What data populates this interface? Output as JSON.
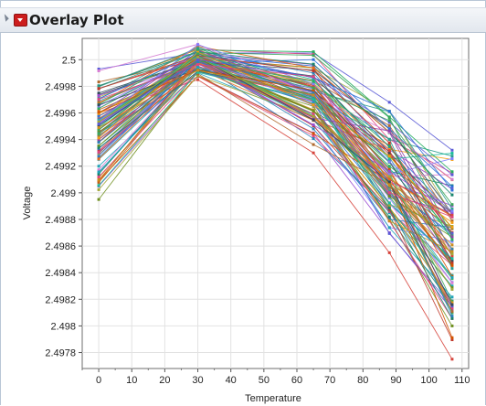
{
  "title": "Overlay Plot",
  "chart_data": {
    "type": "line",
    "xlabel": "Temperature",
    "ylabel": "Voltage",
    "xlim": [
      -5,
      112
    ],
    "ylim": [
      2.49768,
      2.50016
    ],
    "x_ticks": [
      0,
      10,
      20,
      30,
      40,
      50,
      60,
      70,
      80,
      90,
      100,
      110
    ],
    "y_ticks": [
      "2.4978",
      "2.498",
      "2.4982",
      "2.4984",
      "2.4986",
      "2.4988",
      "2.499",
      "2.4992",
      "2.4994",
      "2.4996",
      "2.4998",
      "2.5"
    ],
    "grid": true,
    "x": [
      0,
      30,
      65,
      88,
      107
    ],
    "series_count": 100,
    "series_values_range": {
      "x0": [
        2.49895,
        2.49993
      ],
      "x30": [
        2.49985,
        2.50012
      ],
      "x65": [
        2.4993,
        2.50006
      ],
      "x88": [
        2.49855,
        2.49968
      ],
      "x107": [
        2.49775,
        2.49932
      ]
    },
    "example_series": [
      {
        "values": [
          2.49993,
          2.50005,
          2.50005,
          2.49968,
          2.49932
        ]
      },
      {
        "values": [
          2.4998,
          2.50008,
          2.50004,
          2.4994,
          2.49915
        ]
      },
      {
        "values": [
          2.49955,
          2.5,
          2.49975,
          2.4992,
          2.49885
        ]
      },
      {
        "values": [
          2.4994,
          2.49995,
          2.4997,
          2.49905,
          2.49858
        ]
      },
      {
        "values": [
          2.4992,
          2.4999,
          2.49955,
          2.49885,
          2.4983
        ]
      },
      {
        "values": [
          2.49905,
          2.49988,
          2.49945,
          2.4987,
          2.49812
        ]
      },
      {
        "values": [
          2.4996,
          2.49985,
          2.4993,
          2.49855,
          2.49775
        ]
      },
      {
        "values": [
          2.49895,
          2.49992,
          2.49965,
          2.4988,
          2.498
        ]
      }
    ]
  }
}
